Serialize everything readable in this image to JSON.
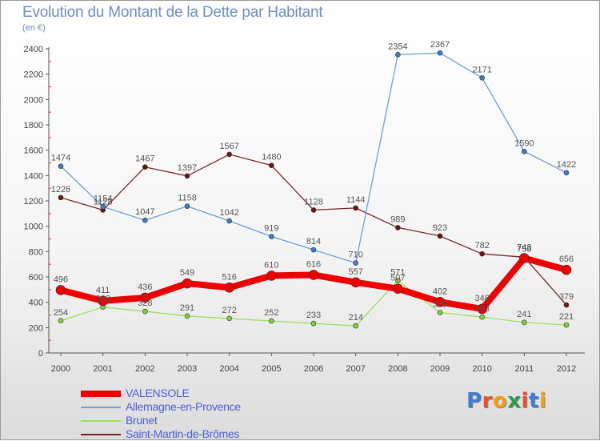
{
  "header": {
    "title": "Evolution du Montant de la Dette par Habitant",
    "subtitle": "(en €)"
  },
  "logo": {
    "text": "Proxiti",
    "letter_colors": [
      "#3a7fd5",
      "#e8522a",
      "#f0a018",
      "#2a9f4a",
      "#e8522a",
      "#3a7fd5",
      "#f0a018"
    ]
  },
  "chart_data": {
    "type": "line",
    "title": "Evolution du Montant de la Dette par Habitant",
    "subtitle": "(en €)",
    "x": [
      "2000",
      "2001",
      "2002",
      "2003",
      "2004",
      "2005",
      "2006",
      "2007",
      "2008",
      "2009",
      "2010",
      "2011",
      "2012"
    ],
    "ylim": [
      0,
      2400
    ],
    "yticks": [
      0,
      200,
      400,
      600,
      800,
      1000,
      1200,
      1400,
      1600,
      1800,
      2000,
      2200,
      2400
    ],
    "grid": false,
    "legend_position": "bottom-left",
    "series": [
      {
        "name": "Saint-Martin-de-Brômes",
        "color": "#7a1f1f",
        "values": [
          1226,
          1128,
          1467,
          1397,
          1567,
          1480,
          1128,
          1144,
          989,
          923,
          782,
          756,
          379
        ],
        "labels": [
          "1226",
          "1128",
          "1467",
          "1397",
          "1567",
          "1480",
          "1128",
          "1144",
          "989",
          "923",
          "782",
          "756",
          "379"
        ]
      },
      {
        "name": "Allemagne-en-Provence",
        "color": "#6da0d8",
        "values": [
          1474,
          1154,
          1047,
          1158,
          1042,
          919,
          814,
          710,
          2354,
          2367,
          2171,
          1590,
          1422
        ],
        "labels": [
          "1474",
          "1154",
          "1047",
          "1158",
          "1042",
          "919",
          "814",
          "710",
          "2354",
          "2367",
          "2171",
          "1590",
          "1422"
        ]
      },
      {
        "name": "Brunet",
        "color": "#9be05a",
        "values": [
          254,
          362,
          328,
          291,
          272,
          252,
          233,
          214,
          571,
          319,
          283,
          241,
          221
        ],
        "labels": [
          "254",
          "362",
          "328",
          "291",
          "272",
          "252",
          "233",
          "214",
          "571",
          "319",
          "283",
          "241",
          "221"
        ]
      },
      {
        "name": "VALENSOLE",
        "color": "#ee0000",
        "values": [
          496,
          411,
          436,
          549,
          516,
          610,
          616,
          557,
          507,
          402,
          348,
          748,
          656
        ],
        "labels": [
          "496",
          "411",
          "436",
          "549",
          "516",
          "610",
          "616",
          "557",
          "507",
          "402",
          "348",
          "748",
          "656"
        ]
      }
    ]
  },
  "legend": {
    "items": [
      {
        "label": "VALENSOLE",
        "color": "#ee0000"
      },
      {
        "label": "Allemagne-en-Provence",
        "color": "#6da0d8"
      },
      {
        "label": "Brunet",
        "color": "#9be05a"
      },
      {
        "label": "Saint-Martin-de-Brômes",
        "color": "#7a1f1f"
      }
    ]
  }
}
